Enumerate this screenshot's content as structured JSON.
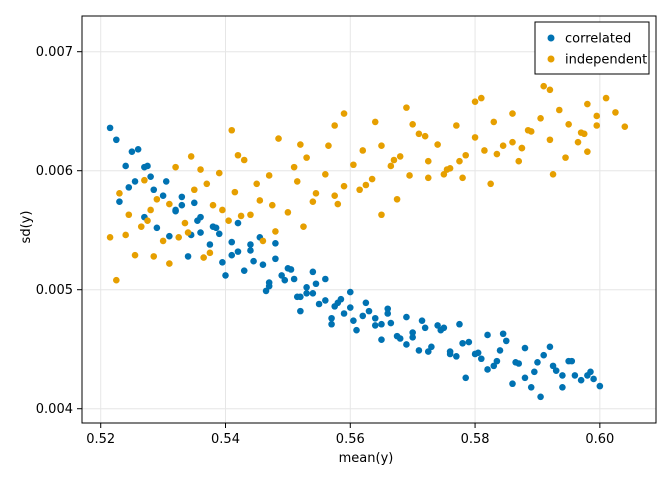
{
  "chart_data": {
    "type": "scatter",
    "title": "",
    "xlabel": "mean(y)",
    "ylabel": "sd(y)",
    "xlim": [
      0.517,
      0.609
    ],
    "ylim": [
      0.00388,
      0.0073
    ],
    "xticks": [
      0.52,
      0.54,
      0.56,
      0.58,
      0.6
    ],
    "xtick_labels": [
      "0.52",
      "0.54",
      "0.56",
      "0.58",
      "0.60"
    ],
    "yticks": [
      0.004,
      0.005,
      0.006,
      0.007
    ],
    "ytick_labels": [
      "0.004",
      "0.005",
      "0.006",
      "0.007"
    ],
    "grid": true,
    "legend_position": "top-right",
    "series": [
      {
        "name": "correlated",
        "color": "#0072b2",
        "x": [
          0.5215,
          0.5225,
          0.524,
          0.5255,
          0.523,
          0.5245,
          0.526,
          0.5275,
          0.527,
          0.5285,
          0.53,
          0.532,
          0.531,
          0.529,
          0.5305,
          0.533,
          0.5345,
          0.536,
          0.534,
          0.5355,
          0.5375,
          0.5385,
          0.5395,
          0.541,
          0.542,
          0.54,
          0.543,
          0.5445,
          0.5455,
          0.547,
          0.548,
          0.5465,
          0.5495,
          0.5505,
          0.5515,
          0.553,
          0.552,
          0.554,
          0.555,
          0.556,
          0.5575,
          0.557,
          0.5585,
          0.56,
          0.561,
          0.5625,
          0.564,
          0.565,
          0.566,
          0.5675,
          0.569,
          0.57,
          0.5715,
          0.573,
          0.5745,
          0.576,
          0.5775,
          0.579,
          0.5805,
          0.582,
          0.5835,
          0.585,
          0.5865,
          0.588,
          0.5895,
          0.591,
          0.5925,
          0.594,
          0.5955,
          0.597,
          0.5985,
          0.6,
          0.528,
          0.535,
          0.542,
          0.548,
          0.554,
          0.56,
          0.566,
          0.572,
          0.578,
          0.584,
          0.59,
          0.596,
          0.527,
          0.533,
          0.539,
          0.546,
          0.552,
          0.558,
          0.564,
          0.57,
          0.576,
          0.582,
          0.588,
          0.594,
          0.525,
          0.532,
          0.538,
          0.544,
          0.551,
          0.557,
          0.563,
          0.569,
          0.575,
          0.581,
          0.587,
          0.593,
          0.599,
          0.536,
          0.541,
          0.547,
          0.553,
          0.559,
          0.565,
          0.571,
          0.577,
          0.583,
          0.589,
          0.595,
          0.55,
          0.556,
          0.562,
          0.568,
          0.574,
          0.58,
          0.586,
          0.592,
          0.598,
          0.544,
          0.549,
          0.5545,
          0.5605,
          0.5665,
          0.5725,
          0.5785,
          0.5845,
          0.5905
        ],
        "y": [
          0.00636,
          0.00626,
          0.00604,
          0.00591,
          0.00574,
          0.00586,
          0.00618,
          0.00604,
          0.00561,
          0.00584,
          0.00579,
          0.00567,
          0.00545,
          0.00552,
          0.00591,
          0.00571,
          0.00546,
          0.00548,
          0.00528,
          0.00558,
          0.00538,
          0.00552,
          0.00523,
          0.0054,
          0.00532,
          0.00512,
          0.00516,
          0.00524,
          0.00544,
          0.00506,
          0.00526,
          0.00499,
          0.00508,
          0.00517,
          0.00494,
          0.00502,
          0.00482,
          0.00497,
          0.00488,
          0.00509,
          0.00486,
          0.00471,
          0.00492,
          0.00485,
          0.00466,
          0.00489,
          0.00476,
          0.00471,
          0.00484,
          0.00461,
          0.00477,
          0.0046,
          0.00474,
          0.00452,
          0.00466,
          0.00448,
          0.00471,
          0.00456,
          0.00447,
          0.00462,
          0.0044,
          0.00457,
          0.00439,
          0.00451,
          0.00431,
          0.00445,
          0.00436,
          0.00428,
          0.0044,
          0.00424,
          0.00431,
          0.00419,
          0.00595,
          0.00573,
          0.00556,
          0.00539,
          0.00515,
          0.00498,
          0.0048,
          0.00468,
          0.00455,
          0.00449,
          0.00439,
          0.00428,
          0.00603,
          0.00578,
          0.00547,
          0.00521,
          0.00494,
          0.00489,
          0.0047,
          0.00464,
          0.00446,
          0.00433,
          0.00426,
          0.00418,
          0.00616,
          0.00566,
          0.00553,
          0.00538,
          0.00509,
          0.00476,
          0.00482,
          0.00454,
          0.00468,
          0.00442,
          0.00438,
          0.00432,
          0.00425,
          0.00561,
          0.00529,
          0.00503,
          0.00497,
          0.0048,
          0.00458,
          0.00449,
          0.00444,
          0.00436,
          0.00418,
          0.0044,
          0.00518,
          0.00491,
          0.00478,
          0.00459,
          0.0047,
          0.00446,
          0.00421,
          0.00452,
          0.00428,
          0.00533,
          0.00512,
          0.00505,
          0.00474,
          0.00472,
          0.00448,
          0.00426,
          0.00463,
          0.0041
        ]
      },
      {
        "name": "independent",
        "color": "#e69f00",
        "x": [
          0.5215,
          0.5225,
          0.524,
          0.5255,
          0.523,
          0.5245,
          0.5265,
          0.528,
          0.527,
          0.529,
          0.53,
          0.532,
          0.531,
          0.5335,
          0.535,
          0.5365,
          0.5345,
          0.538,
          0.539,
          0.5405,
          0.5415,
          0.543,
          0.544,
          0.5455,
          0.547,
          0.5485,
          0.55,
          0.5515,
          0.553,
          0.5545,
          0.556,
          0.5575,
          0.559,
          0.5605,
          0.562,
          0.5635,
          0.565,
          0.5665,
          0.568,
          0.5695,
          0.571,
          0.5725,
          0.574,
          0.5755,
          0.577,
          0.5785,
          0.58,
          0.5815,
          0.583,
          0.5845,
          0.586,
          0.5875,
          0.589,
          0.5905,
          0.592,
          0.5935,
          0.595,
          0.5965,
          0.598,
          0.5995,
          0.601,
          0.6025,
          0.604,
          0.5275,
          0.5325,
          0.5375,
          0.5425,
          0.5475,
          0.5525,
          0.5575,
          0.5625,
          0.5675,
          0.5725,
          0.5775,
          0.5825,
          0.5875,
          0.5925,
          0.5975,
          0.5285,
          0.534,
          0.5395,
          0.545,
          0.551,
          0.5565,
          0.5615,
          0.567,
          0.572,
          0.578,
          0.5835,
          0.5885,
          0.5945,
          0.5995,
          0.531,
          0.537,
          0.542,
          0.548,
          0.554,
          0.559,
          0.565,
          0.57,
          0.576,
          0.581,
          0.587,
          0.592,
          0.598,
          0.536,
          0.541,
          0.546,
          0.552,
          0.558,
          0.564,
          0.569,
          0.575,
          0.58,
          0.586,
          0.591,
          0.597
        ],
        "y": [
          0.00544,
          0.00508,
          0.00546,
          0.00529,
          0.00581,
          0.00563,
          0.00553,
          0.00567,
          0.00592,
          0.00576,
          0.00541,
          0.00603,
          0.00522,
          0.00556,
          0.00584,
          0.00527,
          0.00612,
          0.00571,
          0.00598,
          0.00558,
          0.00582,
          0.00609,
          0.00563,
          0.00575,
          0.00596,
          0.00627,
          0.00565,
          0.00591,
          0.00611,
          0.00581,
          0.00597,
          0.00638,
          0.00587,
          0.00605,
          0.00617,
          0.00593,
          0.00621,
          0.00604,
          0.00612,
          0.00596,
          0.00631,
          0.00608,
          0.00622,
          0.00601,
          0.00638,
          0.00613,
          0.00628,
          0.00617,
          0.00641,
          0.00621,
          0.00648,
          0.00619,
          0.00633,
          0.00644,
          0.00626,
          0.00651,
          0.00639,
          0.00624,
          0.00656,
          0.00638,
          0.00661,
          0.00649,
          0.00637,
          0.00558,
          0.00544,
          0.00531,
          0.00562,
          0.00571,
          0.00553,
          0.00579,
          0.00588,
          0.00576,
          0.00594,
          0.00608,
          0.00589,
          0.00619,
          0.00597,
          0.00631,
          0.00528,
          0.00548,
          0.00567,
          0.00589,
          0.00603,
          0.00621,
          0.00584,
          0.00609,
          0.00629,
          0.00594,
          0.00614,
          0.00634,
          0.00611,
          0.00646,
          0.00572,
          0.00589,
          0.00613,
          0.00549,
          0.00574,
          0.00648,
          0.00563,
          0.00639,
          0.00602,
          0.00661,
          0.00608,
          0.00668,
          0.00616,
          0.00601,
          0.00634,
          0.00541,
          0.00622,
          0.00572,
          0.00641,
          0.00653,
          0.00597,
          0.00658,
          0.00624,
          0.00671,
          0.00632
        ]
      }
    ]
  }
}
